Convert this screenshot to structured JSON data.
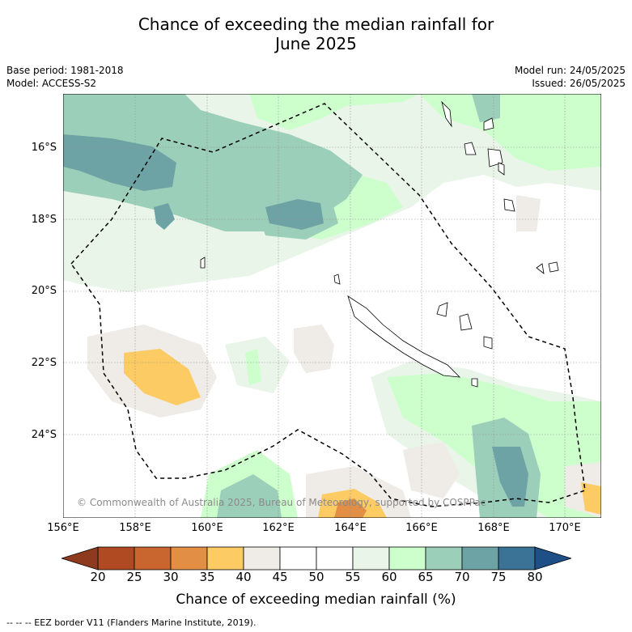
{
  "title": {
    "line1": "Chance of exceeding the median rainfall for",
    "line2": "June 2025"
  },
  "meta": {
    "base_period": "Base period: 1981-2018",
    "model": "Model: ACCESS-S2",
    "model_run": "Model run: 24/05/2025",
    "issued": "Issued: 26/05/2025"
  },
  "map": {
    "lat_labels": [
      "16°S",
      "18°S",
      "20°S",
      "22°S",
      "24°S"
    ],
    "lon_labels": [
      "156°E",
      "158°E",
      "160°E",
      "162°E",
      "164°E",
      "166°E",
      "168°E",
      "170°E"
    ],
    "copyright": "© Commonwealth of Australia 2025, Bureau of Meteorology, supported by COSPPac"
  },
  "colorbar": {
    "ticks": [
      "20",
      "25",
      "30",
      "35",
      "40",
      "45",
      "50",
      "55",
      "60",
      "65",
      "70",
      "75",
      "80"
    ],
    "label": "Chance of exceeding median rainfall (%)",
    "colors": {
      "below_20": "#8e3a1e",
      "c20_25": "#b04a22",
      "c25_30": "#c9652f",
      "c30_35": "#e28f45",
      "c35_40": "#fdcb64",
      "c40_45": "#efebe6",
      "c45_50": "#ffffff",
      "c50_55": "#ffffff",
      "c55_60": "#e9f5e8",
      "c60_65": "#ccffcc",
      "c65_70": "#9ccfb9",
      "c70_75": "#6ea3a6",
      "c75_80": "#3b7396",
      "above_80": "#1e4f86"
    }
  },
  "footer": {
    "legend_text": "--  --  -- EEZ border V11 (Flanders Marine Institute, 2019)."
  }
}
